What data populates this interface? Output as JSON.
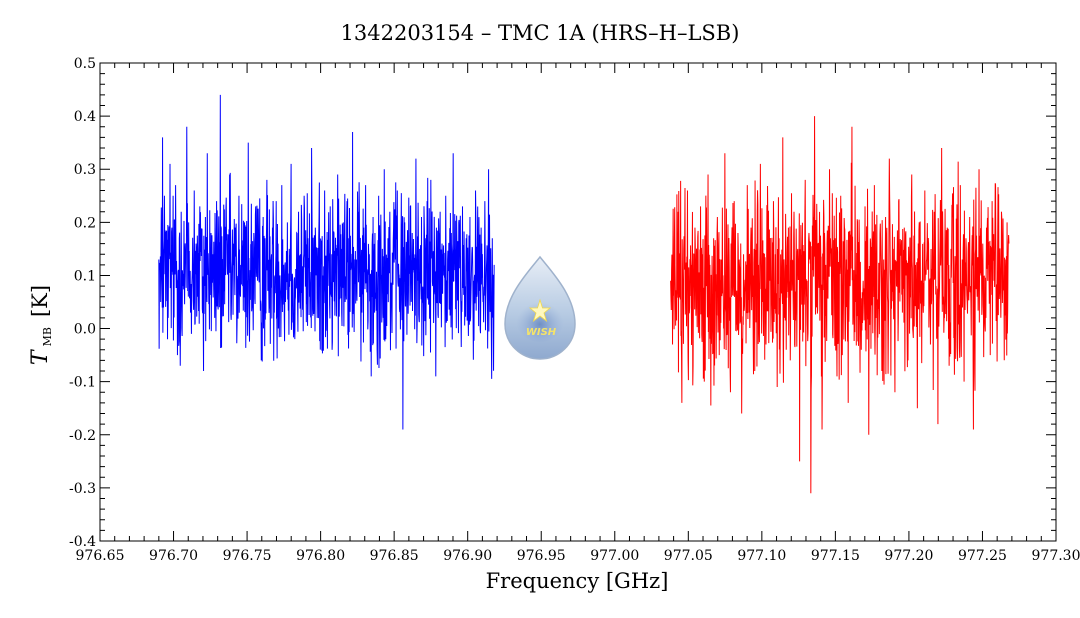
{
  "chart_data": {
    "type": "line",
    "title": "1342203154 – TMC 1A (HRS–H–LSB)",
    "xlabel": "Frequency [GHz]",
    "ylabel": {
      "symbol": "T",
      "subscript": "MB",
      "unit": "[K]"
    },
    "xlim": [
      976.65,
      977.3
    ],
    "ylim": [
      -0.4,
      0.5
    ],
    "x_ticks": [
      "976.65",
      "976.70",
      "976.75",
      "976.80",
      "976.85",
      "976.90",
      "976.95",
      "977.00",
      "977.05",
      "977.10",
      "977.15",
      "977.20",
      "977.25",
      "977.30"
    ],
    "y_ticks": [
      "0.5",
      "0.4",
      "0.3",
      "0.2",
      "0.1",
      "0.0",
      "-0.1",
      "-0.2",
      "-0.3",
      "-0.4"
    ],
    "grid": false,
    "series": [
      {
        "color": "#0000ff",
        "x_range": [
          976.69,
          976.918
        ],
        "baseline_k": 0.1,
        "noise_sigma_k": 0.075,
        "max_k": 0.44,
        "min_k": -0.19,
        "samples": [
          0.13,
          0.05,
          0.36,
          0.25,
          0.18,
          0.02,
          0.31,
          0.19,
          0.12,
          0.27,
          -0.05,
          0.17,
          0.22,
          0.08,
          0.14,
          0.38,
          0.2,
          0.03,
          0.11,
          0.26,
          0.16,
          0.06,
          0.23,
          0.15,
          -0.08,
          0.21,
          0.33,
          0.09,
          0.18,
          0.14,
          0.02,
          0.24,
          0.17,
          0.44,
          0.1,
          0.07,
          0.22,
          0.13,
          0.29,
          0.05,
          0.16,
          0.19,
          0.01,
          0.25,
          0.12,
          0.08,
          0.2,
          0.15,
          0.35,
          0.11,
          0.04,
          0.18,
          0.23,
          0.09,
          0.14,
          -0.06,
          0.21,
          0.17,
          0.28,
          0.07,
          0.13,
          0.19,
          0.03,
          0.24,
          0.16,
          0.1,
          0.27,
          0.12,
          0.05,
          0.2,
          0.15,
          0.31,
          0.09,
          -0.02,
          0.18,
          0.22,
          0.14,
          0.08,
          0.25,
          0.11,
          0.17,
          0.06,
          0.34,
          0.13,
          0.19,
          0.02,
          0.21,
          0.16,
          0.1,
          0.26,
          0.07,
          0.14,
          0.23,
          -0.04,
          0.18,
          0.12,
          0.29,
          0.09,
          0.15,
          0.2,
          0.05,
          0.24,
          0.17,
          0.11,
          0.37,
          0.08,
          0.13,
          0.22,
          0.16,
          0.03,
          0.19,
          0.27,
          0.1,
          0.14,
          -0.09,
          0.21,
          0.18,
          0.06,
          0.25,
          0.12,
          0.15,
          0.3,
          0.08,
          0.17,
          0.22,
          0.04,
          0.19,
          0.13,
          0.26,
          0.1,
          0.16,
          -0.19,
          0.2,
          0.14,
          0.07,
          0.23,
          0.18,
          0.11,
          0.32,
          0.09,
          0.15,
          0.21,
          0.05,
          0.17,
          0.24,
          0.12,
          0.28,
          0.08,
          0.14,
          0.19,
          0.02,
          0.22,
          0.16,
          0.1,
          0.25,
          0.13,
          0.06,
          0.18,
          0.33,
          0.11,
          0.15,
          0.2,
          0.07,
          0.23,
          0.12,
          0.17,
          0.03,
          0.21,
          0.14,
          0.09,
          0.26,
          0.16,
          0.11,
          0.19,
          0.05,
          0.24,
          0.13,
          0.3,
          0.08,
          0.17,
          0.12
        ]
      },
      {
        "color": "#ff0000",
        "x_range": [
          977.038,
          977.268
        ],
        "baseline_k": 0.08,
        "noise_sigma_k": 0.085,
        "max_k": 0.4,
        "min_k": -0.31,
        "samples": [
          0.09,
          -0.03,
          0.17,
          0.06,
          0.22,
          0.11,
          -0.14,
          0.15,
          0.08,
          0.26,
          0.03,
          0.12,
          -0.07,
          0.19,
          0.1,
          0.05,
          0.23,
          0.14,
          -0.1,
          0.08,
          0.29,
          0.12,
          0.02,
          0.17,
          0.07,
          0.21,
          -0.05,
          0.13,
          0.1,
          0.33,
          0.06,
          0.15,
          -0.12,
          0.09,
          0.24,
          0.04,
          0.18,
          0.11,
          -0.16,
          0.14,
          0.07,
          0.27,
          0.03,
          0.19,
          0.1,
          -0.08,
          0.16,
          0.12,
          0.31,
          0.05,
          0.13,
          -0.03,
          0.2,
          0.09,
          0.06,
          0.24,
          0.14,
          -0.11,
          0.17,
          0.08,
          0.36,
          0.02,
          0.12,
          0.19,
          -0.06,
          0.1,
          0.22,
          0.07,
          0.15,
          -0.25,
          0.13,
          0.05,
          0.28,
          0.09,
          0.18,
          -0.31,
          0.11,
          0.4,
          0.04,
          0.16,
          0.08,
          -0.19,
          0.21,
          0.12,
          0.06,
          0.3,
          0.14,
          0.03,
          0.17,
          -0.09,
          0.1,
          0.25,
          0.07,
          0.19,
          0.13,
          -0.14,
          0.08,
          0.38,
          0.11,
          0.05,
          0.2,
          0.15,
          -0.04,
          0.09,
          0.23,
          0.12,
          -0.2,
          0.16,
          0.07,
          0.27,
          0.1,
          0.04,
          0.18,
          -0.08,
          0.13,
          0.21,
          0.06,
          0.32,
          0.11,
          0.15,
          -0.12,
          0.08,
          0.24,
          0.14,
          0.03,
          0.19,
          0.1,
          -0.06,
          0.17,
          0.29,
          0.07,
          0.12,
          -0.15,
          0.2,
          0.09,
          0.05,
          0.26,
          0.13,
          0.16,
          -0.03,
          0.11,
          0.22,
          0.08,
          -0.18,
          0.14,
          0.34,
          0.06,
          0.1,
          0.19,
          -0.07,
          0.15,
          0.23,
          0.09,
          0.12,
          0.04,
          0.27,
          0.13,
          -0.1,
          0.17,
          0.08,
          0.21,
          0.11,
          -0.19,
          0.14,
          0.06,
          0.3,
          0.1,
          0.16,
          0.02,
          0.19,
          0.12,
          -0.05,
          0.24,
          0.09,
          0.15,
          0.18,
          0.07,
          0.22,
          0.11,
          0.13,
          0.2,
          0.16
        ]
      }
    ],
    "logo": {
      "text": "WISH"
    }
  }
}
